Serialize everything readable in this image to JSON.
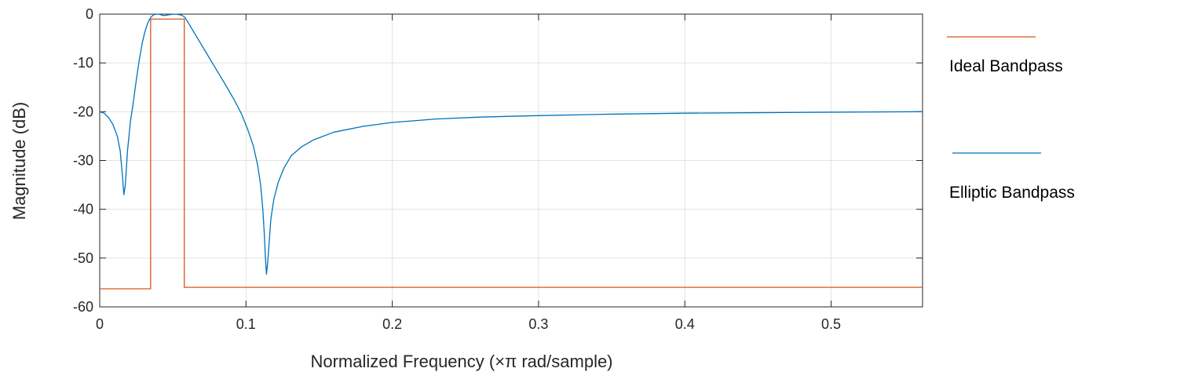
{
  "chart_data": {
    "type": "line",
    "xlabel": "Normalized Frequency  (×π rad/sample)",
    "ylabel": "Magnitude (dB)",
    "xlim": [
      0,
      0.5625
    ],
    "ylim": [
      -60,
      0
    ],
    "xticks": [
      0,
      0.1,
      0.2,
      0.3,
      0.4,
      0.5
    ],
    "xtick_labels": [
      "0",
      "0.1",
      "0.2",
      "0.3",
      "0.4",
      "0.5"
    ],
    "yticks": [
      0,
      -10,
      -20,
      -30,
      -40,
      -50,
      -60
    ],
    "ytick_labels": [
      "0",
      "-10",
      "-20",
      "-30",
      "-40",
      "-50",
      "-60"
    ],
    "grid": true,
    "legend": {
      "placement": "right-outside"
    },
    "series": [
      {
        "name": "Ideal Bandpass",
        "color": "#d95319",
        "points": [
          [
            0,
            -56.3
          ],
          [
            0.0348,
            -56.3
          ],
          [
            0.0348,
            -1
          ],
          [
            0.0578,
            -1
          ],
          [
            0.0578,
            -56.0
          ],
          [
            0.5625,
            -56.0
          ]
        ]
      },
      {
        "name": "Elliptic Bandpass",
        "color": "#0072bd",
        "points": [
          [
            0,
            -20
          ],
          [
            0.003,
            -20.3
          ],
          [
            0.006,
            -21.2
          ],
          [
            0.009,
            -22.6
          ],
          [
            0.012,
            -25
          ],
          [
            0.014,
            -28
          ],
          [
            0.0155,
            -33
          ],
          [
            0.0165,
            -37
          ],
          [
            0.0175,
            -35
          ],
          [
            0.019,
            -28
          ],
          [
            0.021,
            -22
          ],
          [
            0.023,
            -18
          ],
          [
            0.025,
            -13.5
          ],
          [
            0.027,
            -9.5
          ],
          [
            0.029,
            -6
          ],
          [
            0.031,
            -3.5
          ],
          [
            0.033,
            -1.7
          ],
          [
            0.035,
            -0.6
          ],
          [
            0.037,
            -0.1
          ],
          [
            0.04,
            0
          ],
          [
            0.044,
            -0.3
          ],
          [
            0.048,
            -0.1
          ],
          [
            0.052,
            0
          ],
          [
            0.056,
            -0.2
          ],
          [
            0.058,
            -0.6
          ],
          [
            0.06,
            -1.5
          ],
          [
            0.063,
            -3
          ],
          [
            0.067,
            -5
          ],
          [
            0.072,
            -7.5
          ],
          [
            0.077,
            -10
          ],
          [
            0.082,
            -12.5
          ],
          [
            0.087,
            -15
          ],
          [
            0.092,
            -17.6
          ],
          [
            0.097,
            -20.5
          ],
          [
            0.101,
            -23.5
          ],
          [
            0.105,
            -27
          ],
          [
            0.108,
            -31
          ],
          [
            0.11,
            -35
          ],
          [
            0.1115,
            -40
          ],
          [
            0.1125,
            -45
          ],
          [
            0.1133,
            -50
          ],
          [
            0.114,
            -53.3
          ],
          [
            0.1148,
            -51
          ],
          [
            0.1158,
            -47
          ],
          [
            0.117,
            -42
          ],
          [
            0.119,
            -38
          ],
          [
            0.122,
            -34.5
          ],
          [
            0.126,
            -31.5
          ],
          [
            0.131,
            -29
          ],
          [
            0.138,
            -27.2
          ],
          [
            0.146,
            -25.8
          ],
          [
            0.16,
            -24.2
          ],
          [
            0.18,
            -23
          ],
          [
            0.2,
            -22.2
          ],
          [
            0.23,
            -21.5
          ],
          [
            0.26,
            -21.1
          ],
          [
            0.3,
            -20.8
          ],
          [
            0.35,
            -20.5
          ],
          [
            0.4,
            -20.3
          ],
          [
            0.45,
            -20.2
          ],
          [
            0.5,
            -20.1
          ],
          [
            0.5625,
            -20
          ]
        ]
      }
    ]
  }
}
